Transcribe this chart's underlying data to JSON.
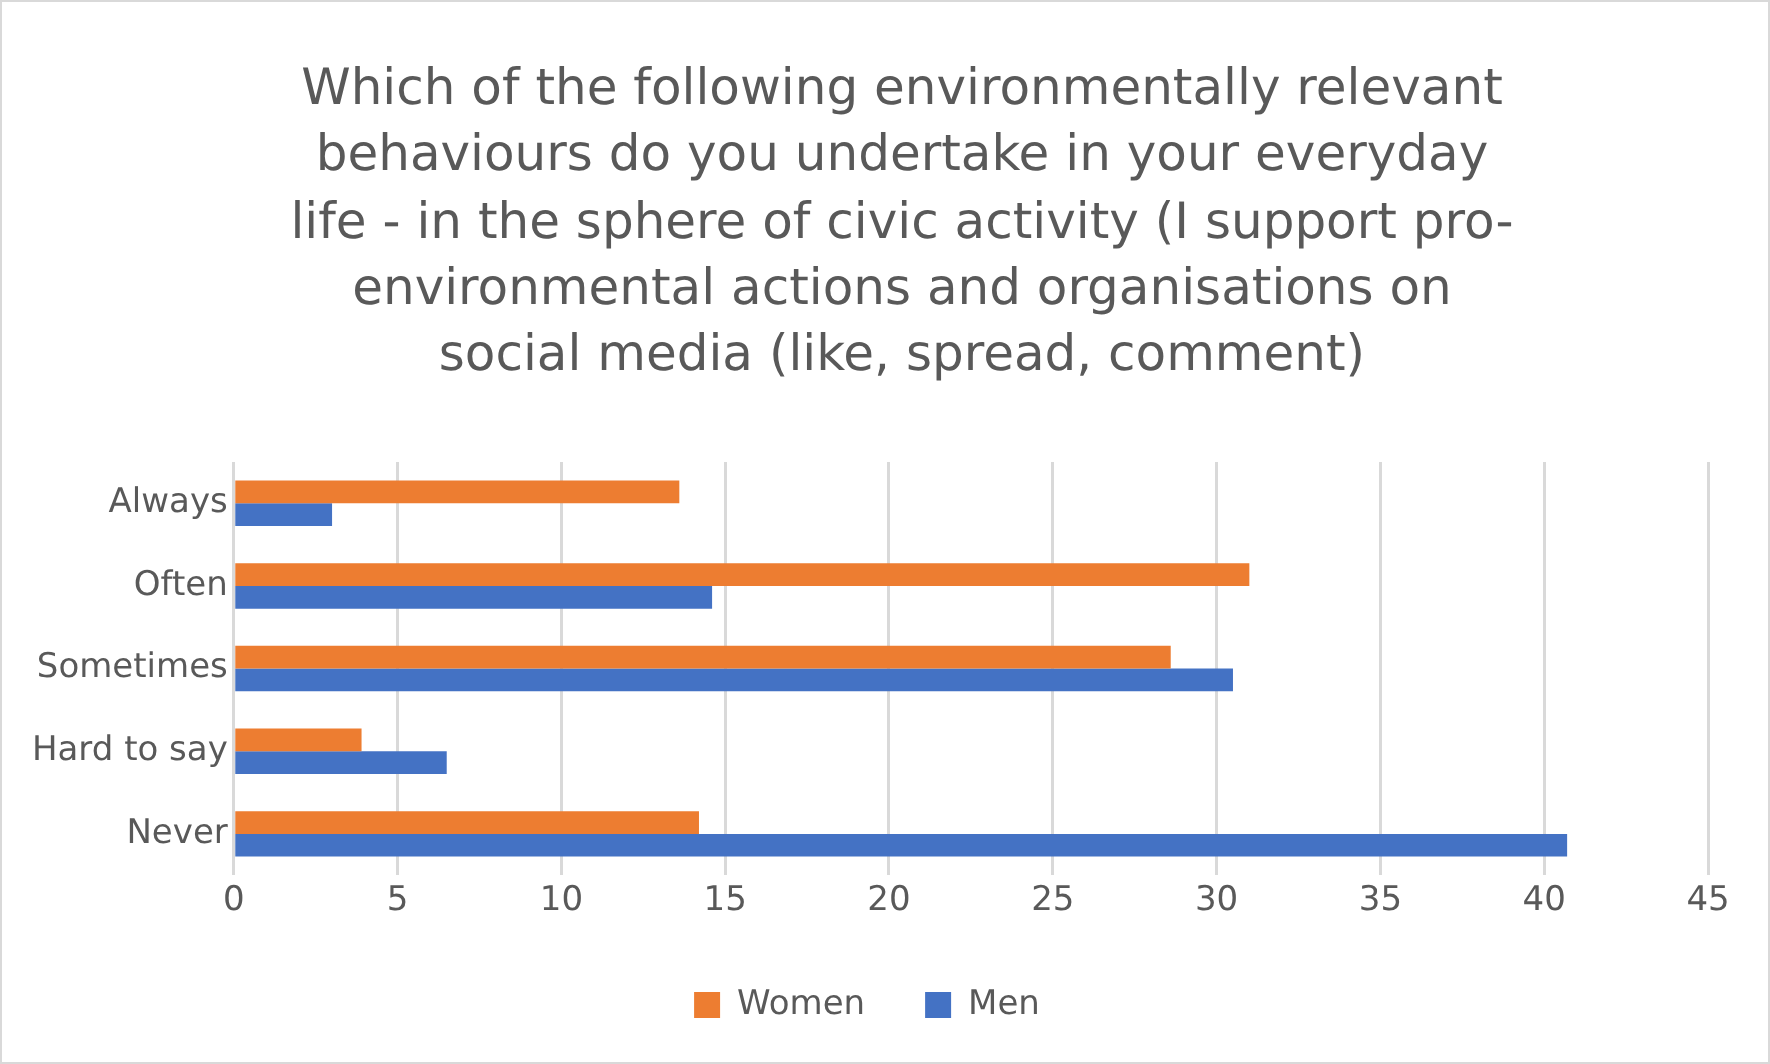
{
  "chart_data": {
    "type": "bar",
    "orientation": "horizontal",
    "title": "Which of the following environmentally relevant behaviours do you undertake in your everyday life - in the sphere of civic activity (I support pro-environmental actions and organisations on social media (like, spread, comment)",
    "categories": [
      "Always",
      "Often",
      "Sometimes",
      "Hard to say",
      "Never"
    ],
    "series": [
      {
        "name": "Women",
        "color": "#ed7d31",
        "values": [
          13.6,
          31.0,
          28.6,
          3.9,
          14.2
        ]
      },
      {
        "name": "Men",
        "color": "#4472c4",
        "values": [
          3.0,
          14.6,
          30.5,
          6.5,
          40.7
        ]
      }
    ],
    "xlim": [
      0,
      45
    ],
    "xticks": [
      0,
      5,
      10,
      15,
      20,
      25,
      30,
      35,
      40,
      45
    ],
    "grid": "x",
    "legend": "bottom"
  }
}
